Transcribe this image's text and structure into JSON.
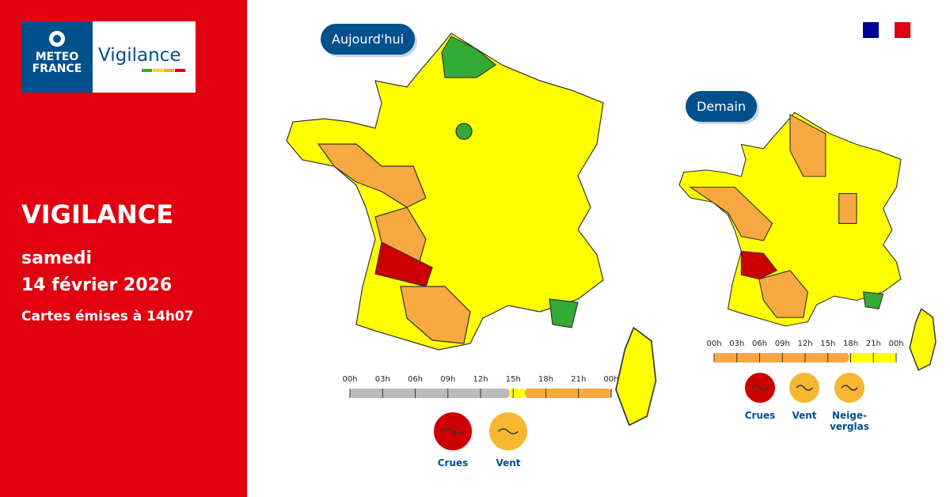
{
  "logo": {
    "brand_lines": [
      "METEO",
      "FRANCE"
    ],
    "product": "Vigilance"
  },
  "sidebar": {
    "title": "VIGILANCE",
    "day": "samedi",
    "date": "14 février 2026",
    "issued": "Cartes émises à 14h07"
  },
  "maps": [
    {
      "label": "Aujourd'hui",
      "timeline": [
        "00h",
        "03h",
        "06h",
        "09h",
        "12h",
        "15h",
        "18h",
        "21h",
        "00h"
      ],
      "hazards": [
        "Crues",
        "Vent"
      ]
    },
    {
      "label": "Demain",
      "timeline": [
        "00h",
        "03h",
        "06h",
        "09h",
        "12h",
        "15h",
        "18h",
        "21h",
        "00h"
      ],
      "hazards": [
        "Crues",
        "Vent",
        "Neige-verglas"
      ]
    }
  ]
}
